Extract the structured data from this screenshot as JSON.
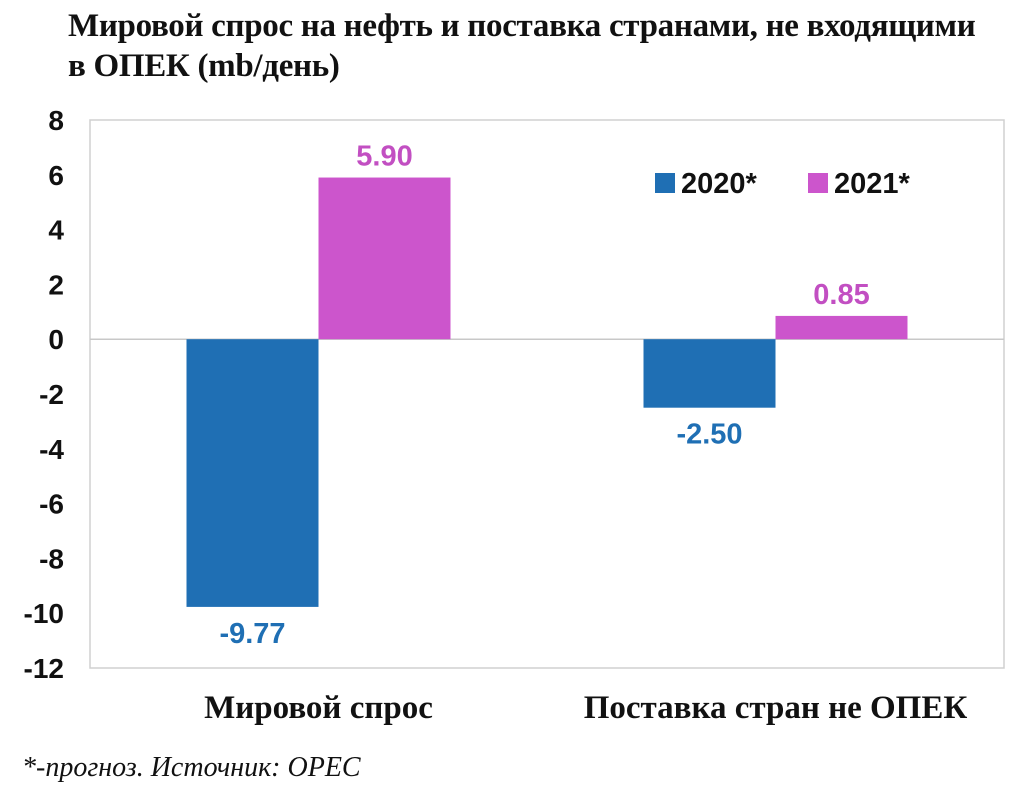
{
  "title_line1": "Мировой спрос на нефть и поставка странами, не входящими",
  "title_line2": "в ОПЕК (mb/день)",
  "footnote": "*-прогноз. Источник: OPEC",
  "colors": {
    "series_2020": "#1f6fb4",
    "series_2021": "#cc55cc",
    "label_2020": "#1f6fb4",
    "label_2021": "#c24fc2"
  },
  "chart_data": {
    "type": "bar",
    "title": "Мировой спрос на нефть и поставка странами, не входящими в ОПЕК (mb/день)",
    "categories": [
      "Мировой спрос",
      "Поставка стран не ОПЕК"
    ],
    "series": [
      {
        "name": "2020*",
        "values": [
          -9.77,
          -2.5
        ],
        "labels": [
          "-9.77",
          "-2.50"
        ]
      },
      {
        "name": "2021*",
        "values": [
          5.9,
          0.85
        ],
        "labels": [
          "5.90",
          "0.85"
        ]
      }
    ],
    "ylim": [
      -12,
      8
    ],
    "yticks": [
      8,
      6,
      4,
      2,
      0,
      -2,
      -4,
      -6,
      -8,
      -10,
      -12
    ],
    "grid": false,
    "legend_position": "top-right",
    "xlabel": "",
    "ylabel": ""
  }
}
